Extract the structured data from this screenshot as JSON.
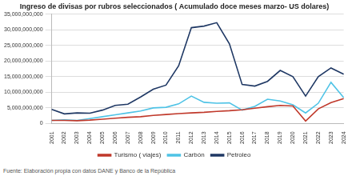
{
  "chart_data": {
    "type": "line",
    "title": "Ingreso de divisas por rubros seleccionados ( Acumulado doce meses marzo- US dolares)",
    "source": "Fuente: Elaboración propia con datos DANE y Banco de la República",
    "categories": [
      "2001",
      "2002",
      "2003",
      "2004",
      "2005",
      "2006",
      "2007",
      "2008",
      "2009",
      "2010",
      "2011",
      "2012",
      "2013",
      "2014",
      "2015",
      "2016",
      "2017",
      "2018",
      "2019",
      "2020",
      "2021",
      "2022",
      "2023",
      "2024"
    ],
    "series": [
      {
        "name": "Turismo ( viajes)",
        "color": "#c0392b",
        "values": [
          1000000000,
          1000000000,
          900000000,
          1100000000,
          1400000000,
          1700000000,
          2000000000,
          2200000000,
          2600000000,
          2900000000,
          3200000000,
          3400000000,
          3600000000,
          3900000000,
          4100000000,
          4400000000,
          4900000000,
          5400000000,
          5800000000,
          5600000000,
          800000000,
          4700000000,
          6700000000,
          8000000000
        ]
      },
      {
        "name": "Carbón",
        "color": "#4fc3e6",
        "values": [
          1000000000,
          1200000000,
          1000000000,
          1600000000,
          2200000000,
          2800000000,
          3400000000,
          4000000000,
          5000000000,
          5200000000,
          6300000000,
          8800000000,
          6800000000,
          6500000000,
          6600000000,
          4300000000,
          5500000000,
          7800000000,
          7200000000,
          6000000000,
          3400000000,
          6500000000,
          13200000000,
          8300000000
        ]
      },
      {
        "name": "Petroleo",
        "color": "#1f3864",
        "values": [
          4500000000,
          3100000000,
          3400000000,
          3300000000,
          4300000000,
          5800000000,
          6200000000,
          8500000000,
          11000000000,
          12300000000,
          18500000000,
          30700000000,
          31200000000,
          32300000000,
          25500000000,
          12500000000,
          12000000000,
          13500000000,
          17000000000,
          15000000000,
          8800000000,
          15000000000,
          17800000000,
          15800000000
        ]
      }
    ],
    "ylim": [
      0,
      35000000000
    ],
    "yticks": [
      0,
      {
        "value": 5000000000,
        "label": "5,000,000,000"
      },
      {
        "value": 10000000000,
        "label": "10,000,000,000"
      },
      {
        "value": 15000000000,
        "label": "15,000,000,000"
      },
      {
        "value": 20000000000,
        "label": "20,000,000,000"
      },
      {
        "value": 25000000000,
        "label": "25,000,000,000"
      },
      {
        "value": 30000000000,
        "label": "30,000,000,000"
      },
      {
        "value": 35000000000,
        "label": "35,000,000,000"
      }
    ],
    "grid": true,
    "legend": "bottom"
  }
}
